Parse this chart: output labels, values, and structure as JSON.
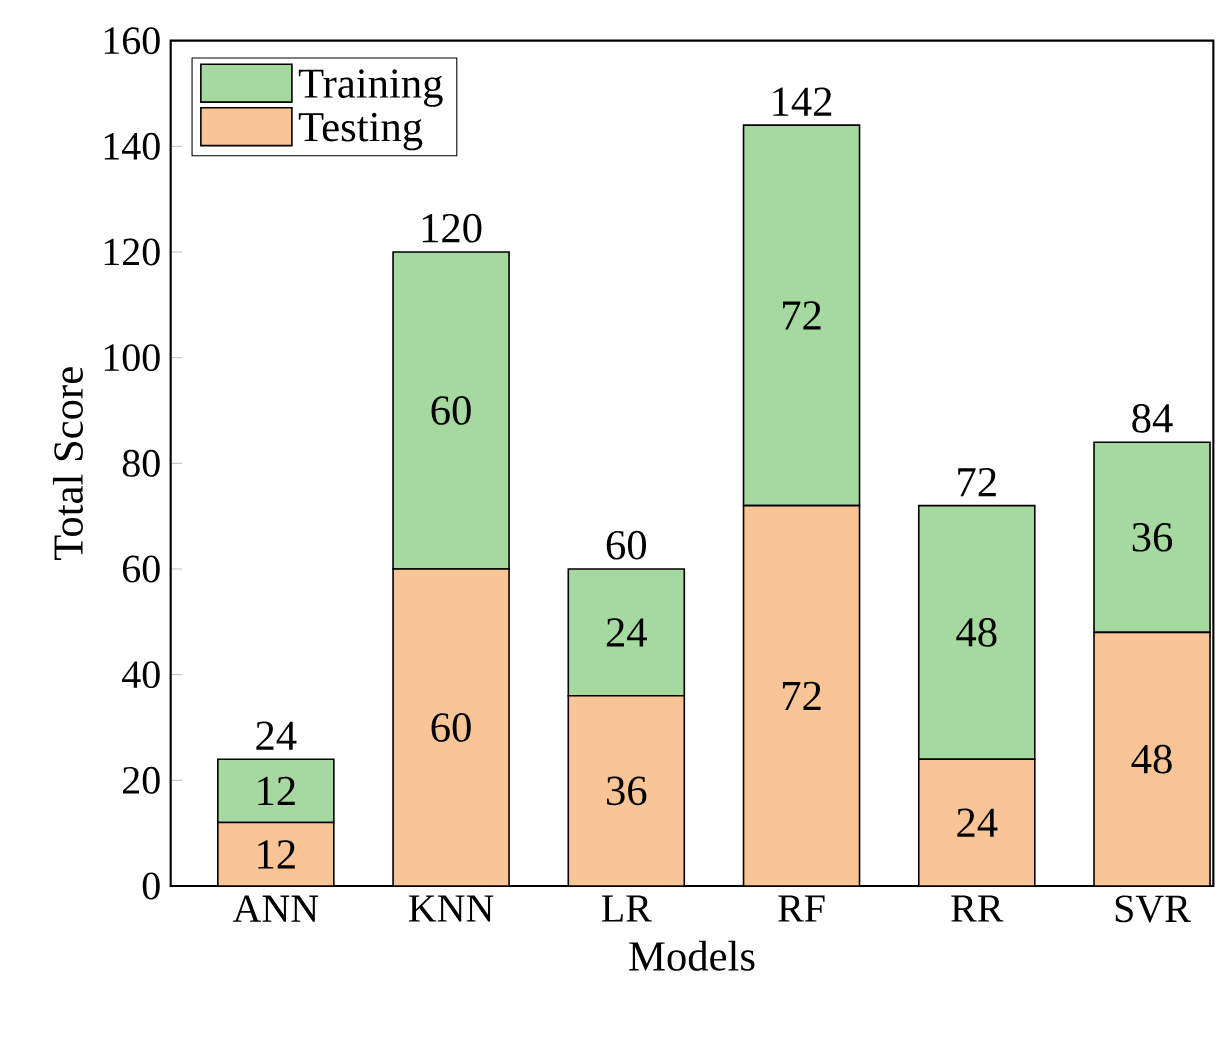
{
  "chart_data": {
    "type": "bar",
    "stacked": true,
    "xlabel": "Models",
    "ylabel": "Total Score",
    "categories": [
      "ANN",
      "KNN",
      "LR",
      "RF",
      "RR",
      "SVR"
    ],
    "series": [
      {
        "name": "Testing",
        "color": "#f9c596",
        "values": [
          12,
          60,
          36,
          72,
          24,
          48
        ]
      },
      {
        "name": "Training",
        "color": "#a6d9a0",
        "values": [
          12,
          60,
          24,
          72,
          48,
          36
        ]
      }
    ],
    "ylim": [
      0,
      160
    ],
    "yticks": [
      0,
      20,
      40,
      60,
      80,
      100,
      120,
      140,
      160
    ],
    "data_labels": true,
    "legend": "top left",
    "annotations": [
      {
        "text": "24",
        "x": "ANN",
        "y": 24
      },
      {
        "text": "120",
        "x": "KNN",
        "y": 120
      },
      {
        "text": "60",
        "x": "LR",
        "y": 60
      },
      {
        "text": "142",
        "x": "RF",
        "y": 144
      },
      {
        "text": "72",
        "x": "RR",
        "y": 72
      },
      {
        "text": "84",
        "x": "SVR",
        "y": 84
      }
    ]
  }
}
